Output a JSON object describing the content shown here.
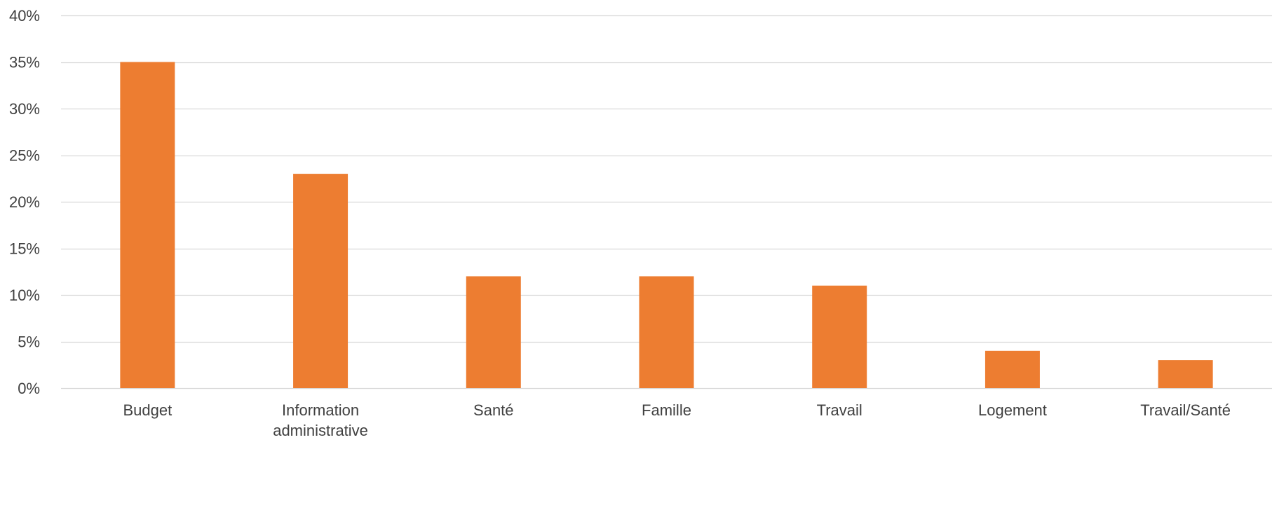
{
  "chart_data": {
    "type": "bar",
    "title": "",
    "xlabel": "",
    "ylabel": "",
    "categories": [
      [
        "Budget"
      ],
      [
        "Information",
        "administrative"
      ],
      [
        "Santé"
      ],
      [
        "Famille"
      ],
      [
        "Travail"
      ],
      [
        "Logement"
      ],
      [
        "Travail/Santé"
      ]
    ],
    "values": [
      35,
      23,
      12,
      12,
      11,
      4,
      3
    ],
    "ylim": [
      0,
      40
    ],
    "yticks": [
      0,
      5,
      10,
      15,
      20,
      25,
      30,
      35,
      40
    ],
    "ytick_labels": [
      "0%",
      "5%",
      "10%",
      "15%",
      "20%",
      "25%",
      "30%",
      "35%",
      "40%"
    ],
    "grid": true,
    "legend": "none",
    "colors": {
      "bar": "#ED7D31",
      "grid": "#D9D9D9",
      "text": "#404040"
    }
  }
}
